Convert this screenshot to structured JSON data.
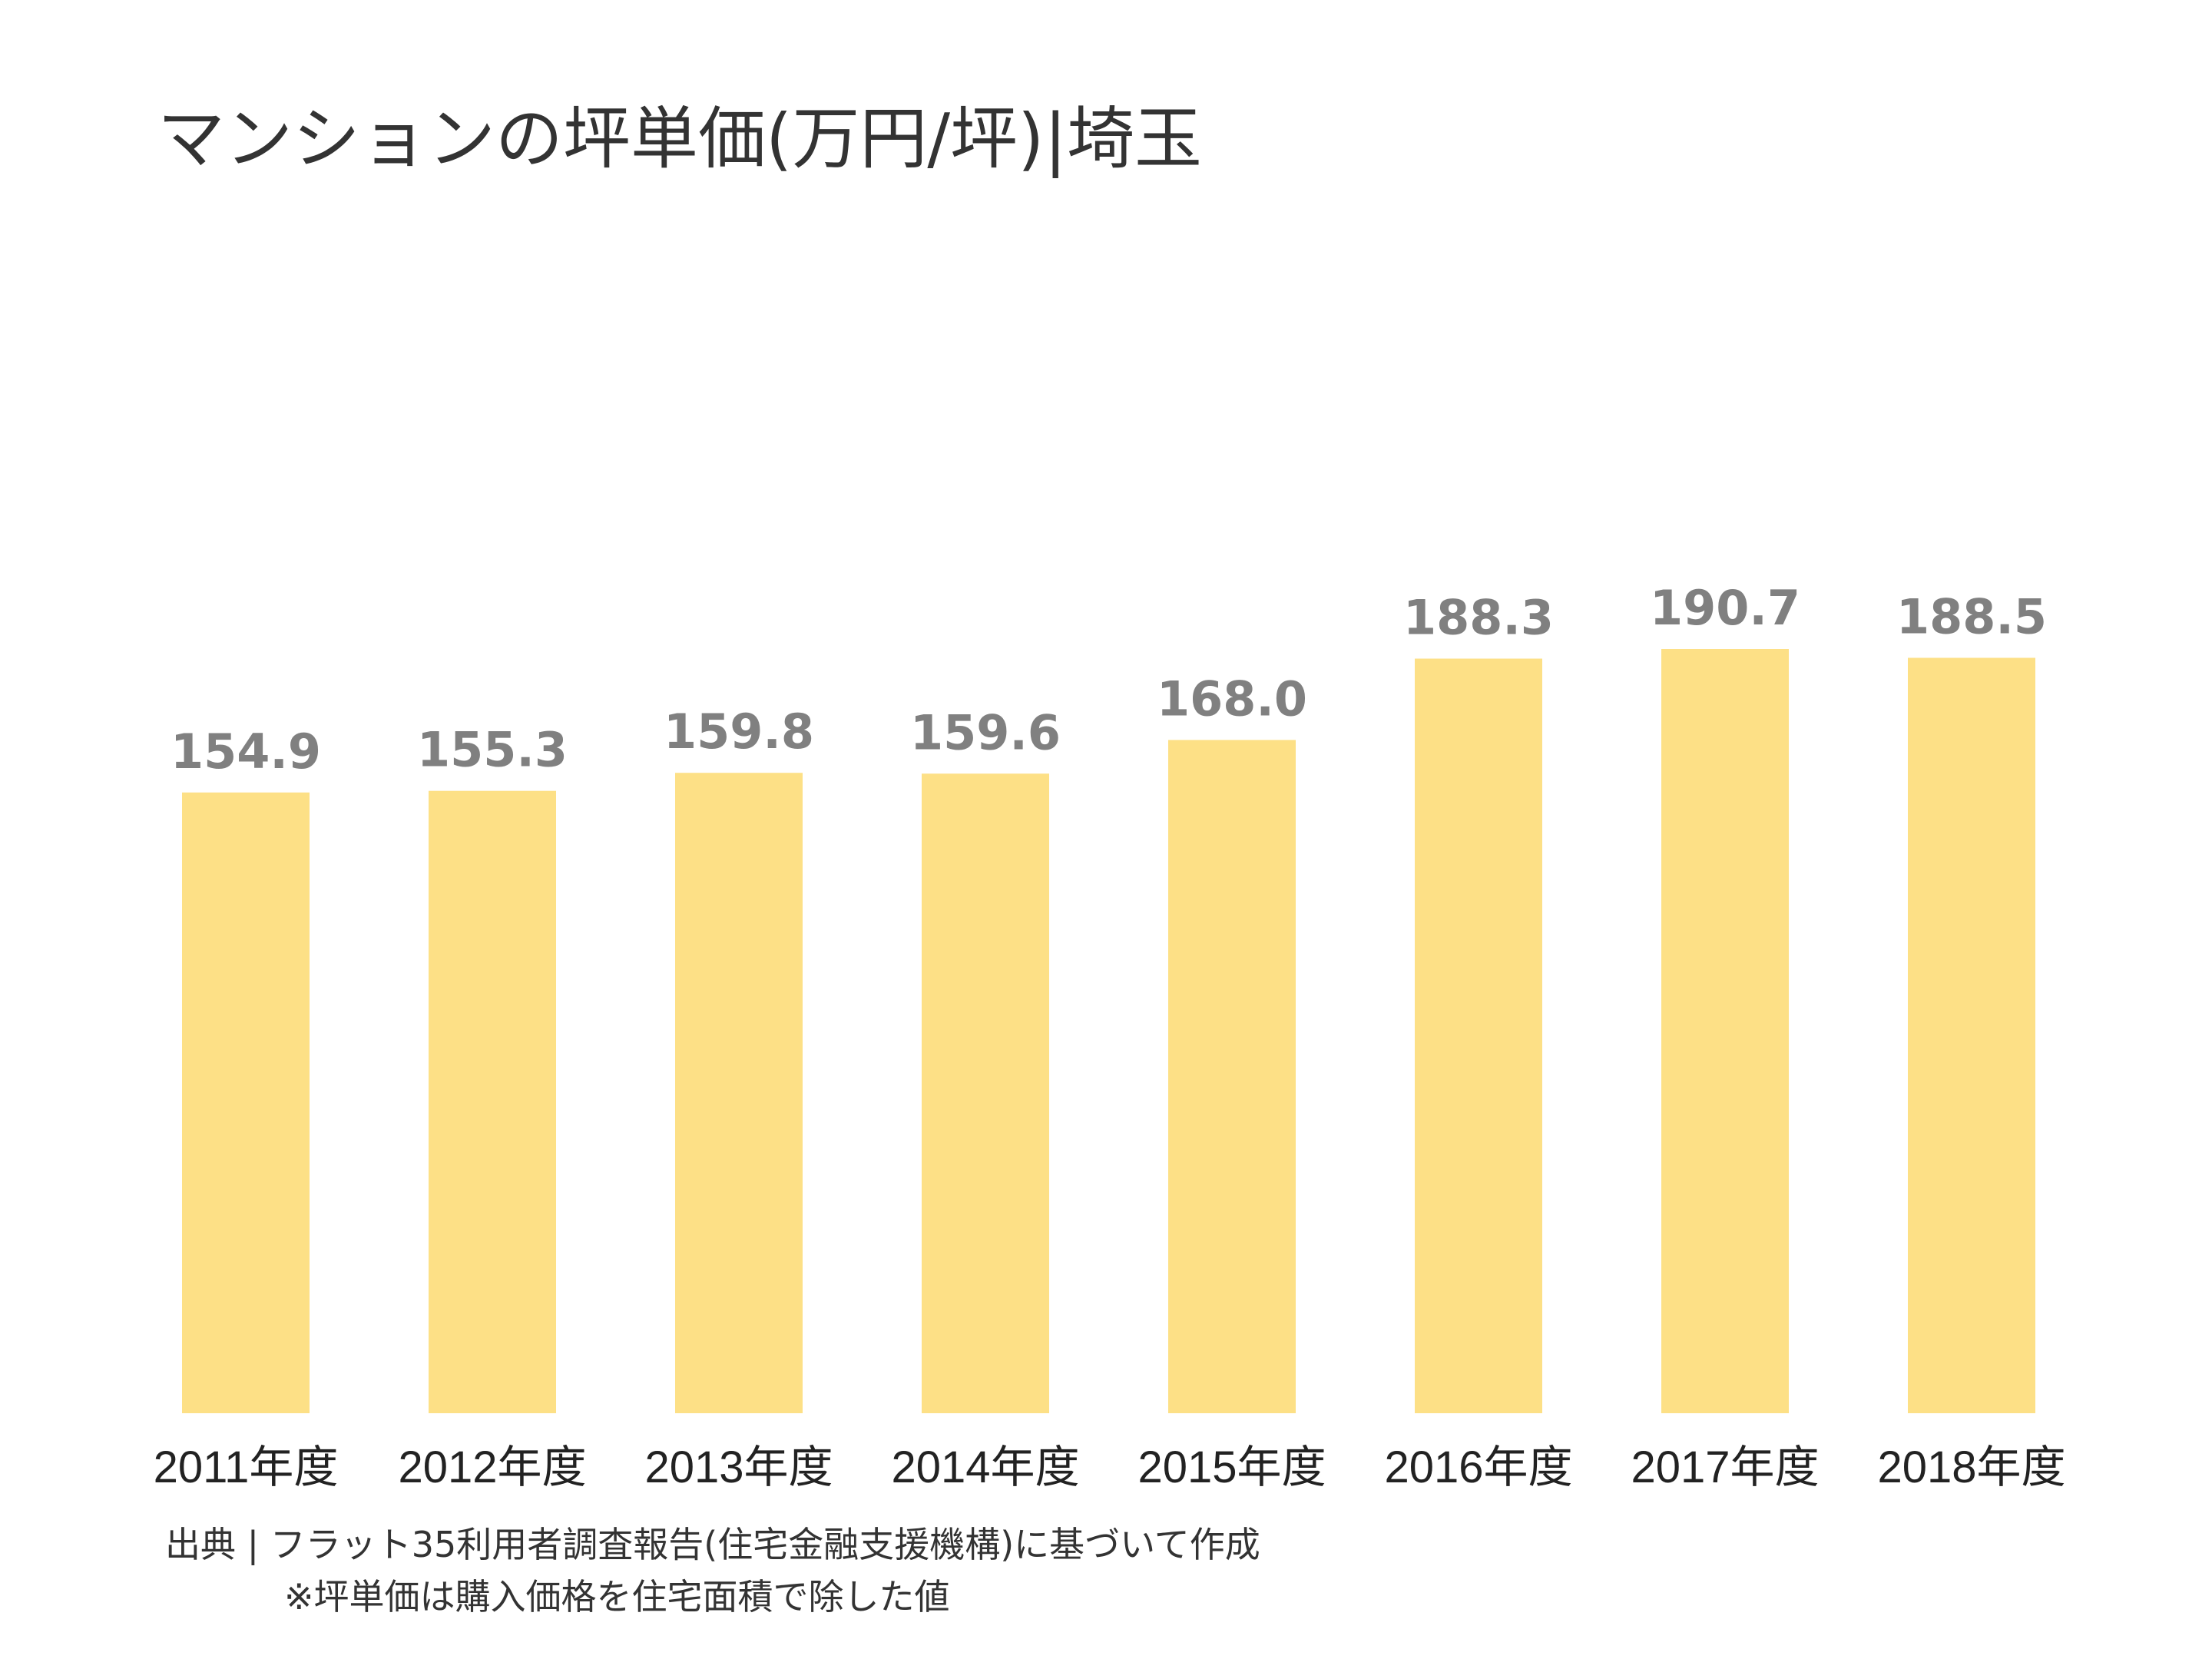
{
  "title": "マンションの坪単価(万円/坪)|埼玉",
  "source": "出典 | フラット35利用者調査報告(住宅金融支援機構)に基づいて作成",
  "note": "※坪単価は購入価格を住宅面積で除した値",
  "colors": {
    "bar": "#fde086",
    "value_label": "#808080",
    "category_label": "#222222",
    "text": "#333333"
  },
  "chart_data": {
    "type": "bar",
    "categories": [
      "2011年度",
      "2012年度",
      "2013年度",
      "2014年度",
      "2015年度",
      "2016年度",
      "2017年度",
      "2018年度"
    ],
    "values": [
      154.9,
      155.3,
      159.8,
      159.6,
      168.0,
      188.3,
      190.7,
      188.5
    ],
    "value_labels": [
      "154.9",
      "155.3",
      "159.8",
      "159.6",
      "168.0",
      "188.3",
      "190.7",
      "188.5"
    ],
    "title": "マンションの坪単価(万円/坪)|埼玉",
    "xlabel": "",
    "ylabel": "",
    "ylim": [
      0,
      190.7
    ],
    "grid": false,
    "legend": "none"
  }
}
